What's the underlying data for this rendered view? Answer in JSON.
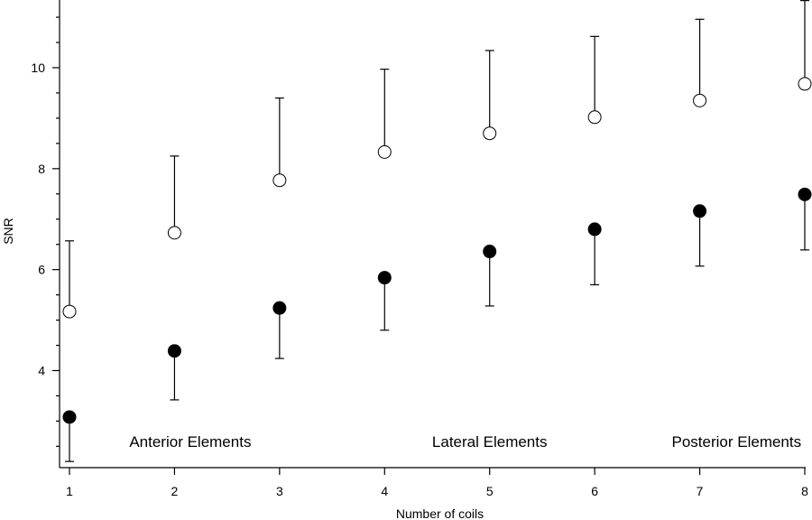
{
  "chart_data": {
    "type": "scatter",
    "xlabel": "Number of coils",
    "ylabel": "SNR",
    "xlim": [
      0.95,
      8.05
    ],
    "ylim": [
      2.2,
      11.3
    ],
    "xticks": [
      1,
      2,
      3,
      4,
      5,
      6,
      7,
      8
    ],
    "yticks": [
      4,
      6,
      8,
      10
    ],
    "grid": false,
    "series": [
      {
        "marker": "open-circle",
        "error_direction": "up",
        "x": [
          1,
          2,
          3,
          4,
          5,
          6,
          7,
          8
        ],
        "y": [
          5.17,
          6.73,
          7.77,
          8.33,
          8.7,
          9.02,
          9.35,
          9.68
        ],
        "error": [
          1.4,
          1.52,
          1.63,
          1.64,
          1.64,
          1.6,
          1.61,
          1.65
        ]
      },
      {
        "marker": "filled-circle",
        "error_direction": "down",
        "x": [
          1,
          2,
          3,
          4,
          5,
          6,
          7,
          8
        ],
        "y": [
          3.08,
          4.39,
          5.24,
          5.84,
          6.36,
          6.8,
          7.16,
          7.49
        ],
        "error": [
          0.88,
          0.97,
          1.0,
          1.04,
          1.08,
          1.1,
          1.09,
          1.1
        ]
      }
    ],
    "annotations": [
      {
        "text": "Anterior Elements",
        "x": 2.15,
        "y": 2.6
      },
      {
        "text": "Lateral Elements",
        "x": 5.0,
        "y": 2.6
      },
      {
        "text": "Posterior Elements",
        "x": 7.35,
        "y": 2.6
      }
    ]
  }
}
